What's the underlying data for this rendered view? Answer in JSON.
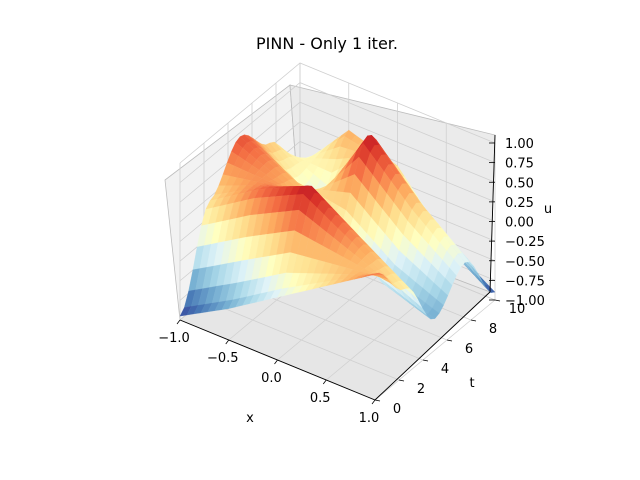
{
  "chart_data": {
    "type": "surface3d",
    "title": "PINN - Only 1 iter.",
    "xlabel": "x",
    "ylabel": "t",
    "zlabel": "u",
    "x_ticks": [
      "−1.0",
      "−0.5",
      "0.0",
      "0.5",
      "1.0"
    ],
    "y_ticks": [
      "0",
      "2",
      "4",
      "6",
      "8",
      "10"
    ],
    "z_ticks": [
      "1.00",
      "0.75",
      "0.50",
      "0.25",
      "0.00",
      "−0.25",
      "−0.50",
      "−0.75",
      "−1.00"
    ],
    "xlim": [
      -1,
      1
    ],
    "ylim": [
      0,
      10
    ],
    "zlim": [
      -1,
      1
    ],
    "grid": true,
    "colormap": "RdYlBu_r",
    "colormap_stops": [
      "#313695",
      "#4575b4",
      "#74add1",
      "#abd9e9",
      "#e0f3f8",
      "#ffffbf",
      "#fee090",
      "#fdae61",
      "#f46d43",
      "#d73027",
      "#a50026"
    ],
    "surface_samples": {
      "x": [
        -1.0,
        -0.5,
        0.0,
        0.5,
        1.0
      ],
      "t": [
        0,
        2.5,
        5,
        7.5,
        10
      ],
      "u": [
        [
          -0.95,
          -0.6,
          -0.2,
          0.2,
          0.6
        ],
        [
          0.2,
          0.6,
          0.9,
          0.5,
          0.1
        ],
        [
          0.7,
          0.4,
          0.0,
          -0.4,
          -0.6
        ],
        [
          0.3,
          -0.2,
          0.9,
          0.3,
          -0.2
        ],
        [
          -0.3,
          0.4,
          0.2,
          -0.5,
          -0.9
        ]
      ]
    }
  }
}
